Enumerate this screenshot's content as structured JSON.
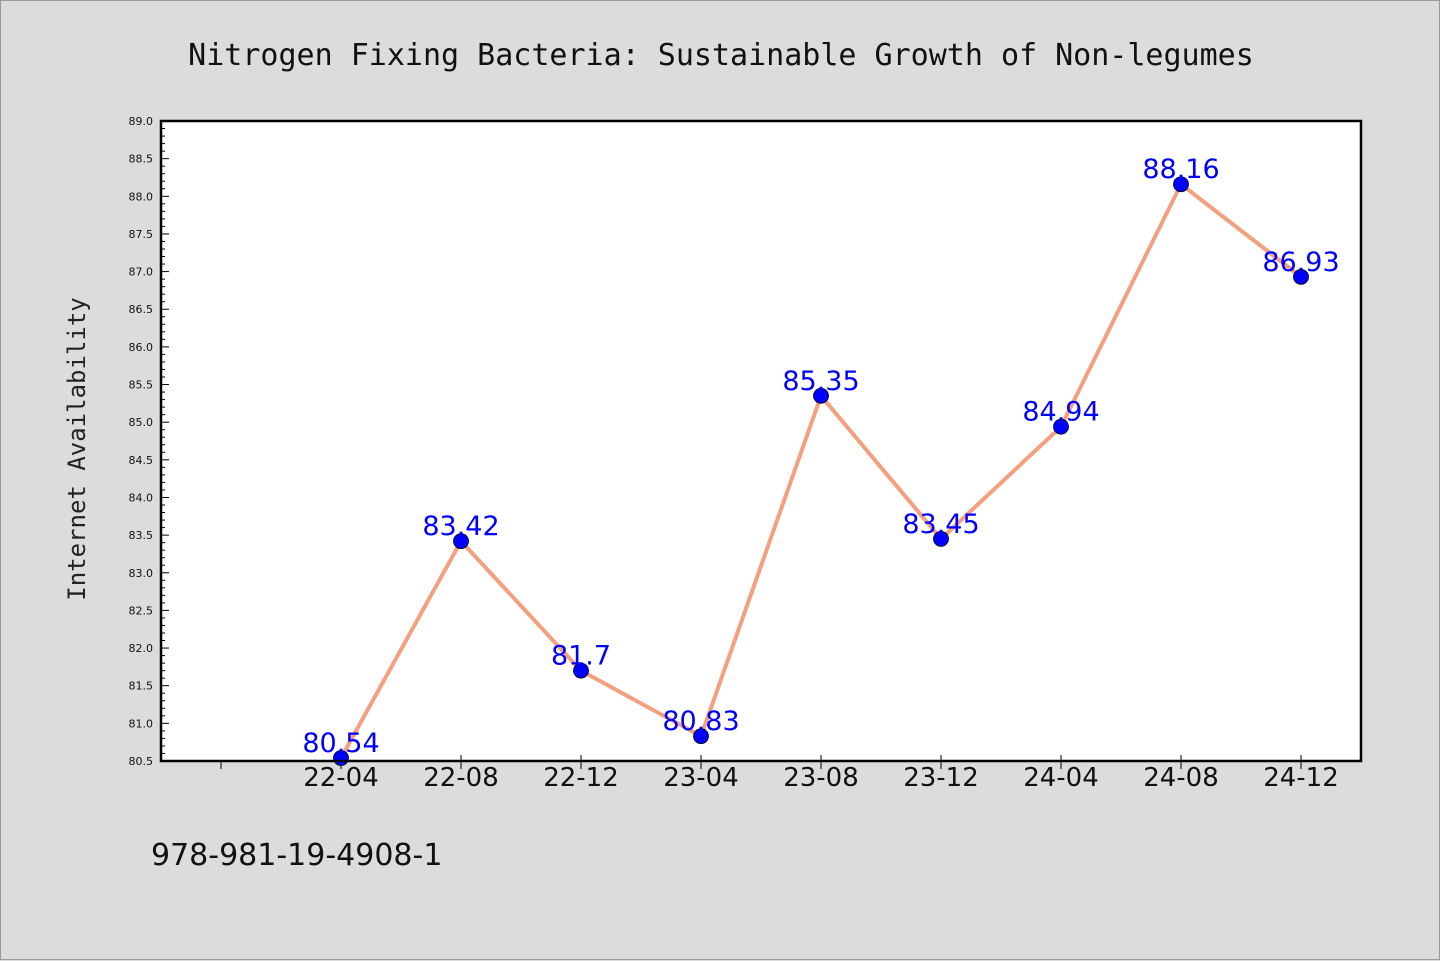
{
  "chart_data": {
    "type": "line",
    "title": "Nitrogen Fixing Bacteria: Sustainable Growth of Non-legumes",
    "xlabel": "",
    "ylabel": "Internet Availability",
    "categories": [
      "22-04",
      "22-08",
      "22-12",
      "23-04",
      "23-08",
      "23-12",
      "24-04",
      "24-08",
      "24-12"
    ],
    "series": [
      {
        "values": [
          80.54,
          83.42,
          81.7,
          80.83,
          85.35,
          83.45,
          84.94,
          88.16,
          86.93
        ],
        "labels": [
          "80.54",
          "83.42",
          "81.7",
          "80.83",
          "85.35",
          "83.45",
          "84.94",
          "88.16",
          "86.93"
        ],
        "line_color": "#f4a07f",
        "marker_color": "#0000ff"
      }
    ],
    "ylim": [
      80.5,
      89.0
    ],
    "yticks": [
      "80.5",
      "81.0",
      "81.5",
      "82.0",
      "82.5",
      "83.0",
      "83.5",
      "84.0",
      "84.5",
      "85.0",
      "85.5",
      "86.0",
      "86.5",
      "87.0",
      "87.5",
      "88.0",
      "88.5",
      "89.0"
    ],
    "grid": false,
    "legend": "none"
  },
  "footer": {
    "isbn": "978-981-19-4908-1"
  }
}
